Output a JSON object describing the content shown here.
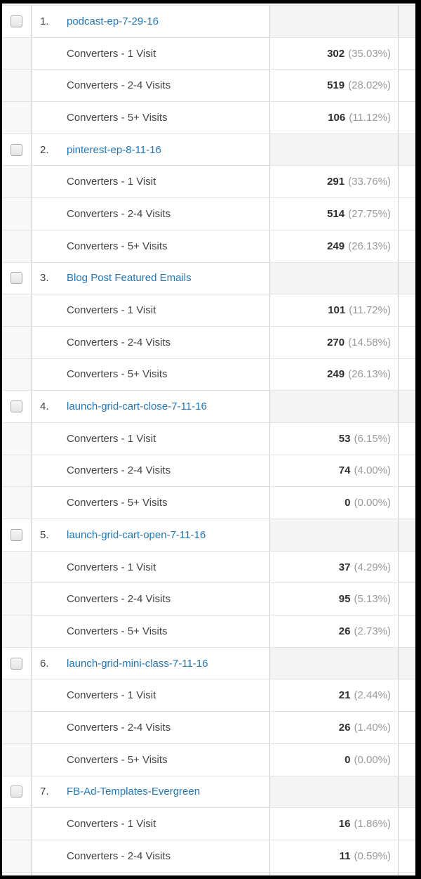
{
  "colors": {
    "link_blue": "#1f76be",
    "value_text": "#2e2e2e",
    "percent_text": "#9a9a9a",
    "frame_border": "#000000"
  },
  "groups": [
    {
      "rank": "1.",
      "name": "podcast-ep-7-29-16",
      "rows": [
        {
          "label": "Converters - 1 Visit",
          "value": "302",
          "pct": "(35.03%)"
        },
        {
          "label": "Converters - 2-4 Visits",
          "value": "519",
          "pct": "(28.02%)"
        },
        {
          "label": "Converters - 5+ Visits",
          "value": "106",
          "pct": "(11.12%)"
        }
      ]
    },
    {
      "rank": "2.",
      "name": "pinterest-ep-8-11-16",
      "rows": [
        {
          "label": "Converters - 1 Visit",
          "value": "291",
          "pct": "(33.76%)"
        },
        {
          "label": "Converters - 2-4 Visits",
          "value": "514",
          "pct": "(27.75%)"
        },
        {
          "label": "Converters - 5+ Visits",
          "value": "249",
          "pct": "(26.13%)"
        }
      ]
    },
    {
      "rank": "3.",
      "name": "Blog Post Featured Emails",
      "rows": [
        {
          "label": "Converters - 1 Visit",
          "value": "101",
          "pct": "(11.72%)"
        },
        {
          "label": "Converters - 2-4 Visits",
          "value": "270",
          "pct": "(14.58%)"
        },
        {
          "label": "Converters - 5+ Visits",
          "value": "249",
          "pct": "(26.13%)"
        }
      ]
    },
    {
      "rank": "4.",
      "name": "launch-grid-cart-close-7-11-16",
      "rows": [
        {
          "label": "Converters - 1 Visit",
          "value": "53",
          "pct": "(6.15%)"
        },
        {
          "label": "Converters - 2-4 Visits",
          "value": "74",
          "pct": "(4.00%)"
        },
        {
          "label": "Converters - 5+ Visits",
          "value": "0",
          "pct": "(0.00%)"
        }
      ]
    },
    {
      "rank": "5.",
      "name": "launch-grid-cart-open-7-11-16",
      "rows": [
        {
          "label": "Converters - 1 Visit",
          "value": "37",
          "pct": "(4.29%)"
        },
        {
          "label": "Converters - 2-4 Visits",
          "value": "95",
          "pct": "(5.13%)"
        },
        {
          "label": "Converters - 5+ Visits",
          "value": "26",
          "pct": "(2.73%)"
        }
      ]
    },
    {
      "rank": "6.",
      "name": "launch-grid-mini-class-7-11-16",
      "rows": [
        {
          "label": "Converters - 1 Visit",
          "value": "21",
          "pct": "(2.44%)"
        },
        {
          "label": "Converters - 2-4 Visits",
          "value": "26",
          "pct": "(1.40%)"
        },
        {
          "label": "Converters - 5+ Visits",
          "value": "0",
          "pct": "(0.00%)"
        }
      ]
    },
    {
      "rank": "7.",
      "name": "FB-Ad-Templates-Evergreen",
      "rows": [
        {
          "label": "Converters - 1 Visit",
          "value": "16",
          "pct": "(1.86%)"
        },
        {
          "label": "Converters - 2-4 Visits",
          "value": "11",
          "pct": "(0.59%)"
        }
      ]
    }
  ]
}
